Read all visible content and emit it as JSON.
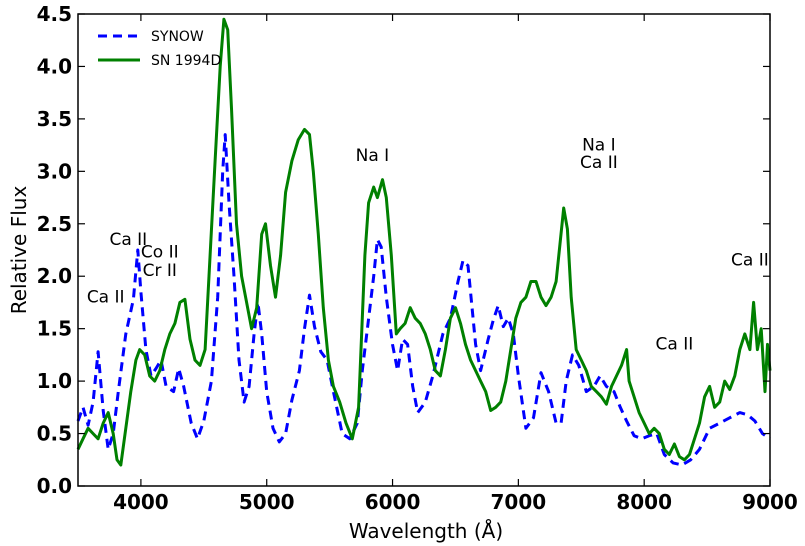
{
  "chart_data": {
    "type": "line",
    "xlabel": "Wavelength (Å)",
    "ylabel": "Relative Flux",
    "xlim": [
      3500,
      9000
    ],
    "ylim": [
      0.0,
      4.5
    ],
    "xticks": [
      "4000",
      "5000",
      "6000",
      "7000",
      "8000",
      "9000"
    ],
    "yticks": [
      "0.0",
      "0.5",
      "1.0",
      "1.5",
      "2.0",
      "2.5",
      "3.0",
      "3.5",
      "4.0",
      "4.5"
    ],
    "grid": false,
    "legend_position": "top-left",
    "series": [
      {
        "name": "SYNOW",
        "color": "#0000ff",
        "style": "dashed",
        "points": [
          [
            3500,
            0.62
          ],
          [
            3540,
            0.75
          ],
          [
            3580,
            0.58
          ],
          [
            3620,
            0.8
          ],
          [
            3660,
            1.28
          ],
          [
            3700,
            0.72
          ],
          [
            3740,
            0.35
          ],
          [
            3780,
            0.5
          ],
          [
            3820,
            0.9
          ],
          [
            3880,
            1.45
          ],
          [
            3940,
            1.78
          ],
          [
            3975,
            2.25
          ],
          [
            4000,
            1.85
          ],
          [
            4040,
            1.3
          ],
          [
            4080,
            1.05
          ],
          [
            4120,
            1.12
          ],
          [
            4160,
            1.2
          ],
          [
            4200,
            0.95
          ],
          [
            4260,
            0.9
          ],
          [
            4300,
            1.12
          ],
          [
            4340,
            0.95
          ],
          [
            4400,
            0.6
          ],
          [
            4450,
            0.45
          ],
          [
            4500,
            0.62
          ],
          [
            4560,
            1.0
          ],
          [
            4610,
            1.8
          ],
          [
            4650,
            3.0
          ],
          [
            4670,
            3.35
          ],
          [
            4700,
            2.7
          ],
          [
            4740,
            2.0
          ],
          [
            4780,
            1.2
          ],
          [
            4820,
            0.8
          ],
          [
            4860,
            0.95
          ],
          [
            4900,
            1.45
          ],
          [
            4930,
            1.75
          ],
          [
            4960,
            1.45
          ],
          [
            5000,
            0.9
          ],
          [
            5050,
            0.55
          ],
          [
            5100,
            0.42
          ],
          [
            5150,
            0.5
          ],
          [
            5200,
            0.82
          ],
          [
            5260,
            1.1
          ],
          [
            5300,
            1.5
          ],
          [
            5340,
            1.82
          ],
          [
            5380,
            1.52
          ],
          [
            5430,
            1.28
          ],
          [
            5480,
            1.2
          ],
          [
            5530,
            0.9
          ],
          [
            5600,
            0.5
          ],
          [
            5660,
            0.45
          ],
          [
            5720,
            0.6
          ],
          [
            5760,
            1.1
          ],
          [
            5800,
            1.5
          ],
          [
            5850,
            2.0
          ],
          [
            5880,
            2.35
          ],
          [
            5910,
            2.28
          ],
          [
            5950,
            1.8
          ],
          [
            6000,
            1.35
          ],
          [
            6040,
            1.1
          ],
          [
            6080,
            1.4
          ],
          [
            6120,
            1.35
          ],
          [
            6160,
            0.95
          ],
          [
            6200,
            0.7
          ],
          [
            6260,
            0.8
          ],
          [
            6320,
            1.05
          ],
          [
            6400,
            1.45
          ],
          [
            6460,
            1.6
          ],
          [
            6520,
            1.95
          ],
          [
            6560,
            2.15
          ],
          [
            6600,
            2.1
          ],
          [
            6660,
            1.35
          ],
          [
            6700,
            1.1
          ],
          [
            6760,
            1.4
          ],
          [
            6800,
            1.58
          ],
          [
            6840,
            1.72
          ],
          [
            6880,
            1.52
          ],
          [
            6920,
            1.6
          ],
          [
            6960,
            1.45
          ],
          [
            7000,
            1.05
          ],
          [
            7060,
            0.55
          ],
          [
            7120,
            0.65
          ],
          [
            7180,
            1.08
          ],
          [
            7240,
            0.9
          ],
          [
            7300,
            0.6
          ],
          [
            7340,
            0.6
          ],
          [
            7380,
            1.0
          ],
          [
            7430,
            1.25
          ],
          [
            7480,
            1.15
          ],
          [
            7540,
            0.9
          ],
          [
            7600,
            0.95
          ],
          [
            7650,
            1.05
          ],
          [
            7700,
            0.95
          ],
          [
            7760,
            0.9
          ],
          [
            7810,
            0.75
          ],
          [
            7860,
            0.62
          ],
          [
            7920,
            0.48
          ],
          [
            7980,
            0.45
          ],
          [
            8040,
            0.48
          ],
          [
            8100,
            0.5
          ],
          [
            8160,
            0.3
          ],
          [
            8230,
            0.22
          ],
          [
            8300,
            0.2
          ],
          [
            8370,
            0.25
          ],
          [
            8440,
            0.35
          ],
          [
            8520,
            0.55
          ],
          [
            8600,
            0.6
          ],
          [
            8680,
            0.65
          ],
          [
            8760,
            0.7
          ],
          [
            8820,
            0.68
          ],
          [
            8880,
            0.62
          ],
          [
            8940,
            0.5
          ],
          [
            9000,
            0.45
          ]
        ]
      },
      {
        "name": "SN 1994D",
        "color": "#008000",
        "style": "solid",
        "points": [
          [
            3500,
            0.35
          ],
          [
            3540,
            0.45
          ],
          [
            3580,
            0.55
          ],
          [
            3620,
            0.5
          ],
          [
            3660,
            0.45
          ],
          [
            3700,
            0.6
          ],
          [
            3740,
            0.7
          ],
          [
            3780,
            0.5
          ],
          [
            3810,
            0.25
          ],
          [
            3840,
            0.2
          ],
          [
            3880,
            0.55
          ],
          [
            3920,
            0.9
          ],
          [
            3960,
            1.2
          ],
          [
            3990,
            1.3
          ],
          [
            4030,
            1.25
          ],
          [
            4070,
            1.05
          ],
          [
            4110,
            1.0
          ],
          [
            4150,
            1.1
          ],
          [
            4190,
            1.3
          ],
          [
            4230,
            1.45
          ],
          [
            4270,
            1.55
          ],
          [
            4310,
            1.75
          ],
          [
            4350,
            1.78
          ],
          [
            4390,
            1.4
          ],
          [
            4430,
            1.2
          ],
          [
            4470,
            1.15
          ],
          [
            4510,
            1.3
          ],
          [
            4550,
            2.2
          ],
          [
            4590,
            3.1
          ],
          [
            4630,
            4.0
          ],
          [
            4660,
            4.45
          ],
          [
            4690,
            4.35
          ],
          [
            4720,
            3.6
          ],
          [
            4760,
            2.5
          ],
          [
            4800,
            2.0
          ],
          [
            4840,
            1.75
          ],
          [
            4880,
            1.5
          ],
          [
            4920,
            1.7
          ],
          [
            4960,
            2.4
          ],
          [
            4990,
            2.5
          ],
          [
            5030,
            2.1
          ],
          [
            5070,
            1.8
          ],
          [
            5110,
            2.2
          ],
          [
            5150,
            2.8
          ],
          [
            5200,
            3.1
          ],
          [
            5250,
            3.3
          ],
          [
            5300,
            3.4
          ],
          [
            5340,
            3.35
          ],
          [
            5370,
            3.0
          ],
          [
            5410,
            2.4
          ],
          [
            5450,
            1.7
          ],
          [
            5490,
            1.2
          ],
          [
            5530,
            0.95
          ],
          [
            5580,
            0.8
          ],
          [
            5630,
            0.6
          ],
          [
            5680,
            0.45
          ],
          [
            5730,
            0.75
          ],
          [
            5780,
            2.2
          ],
          [
            5810,
            2.7
          ],
          [
            5850,
            2.85
          ],
          [
            5880,
            2.75
          ],
          [
            5920,
            2.92
          ],
          [
            5950,
            2.75
          ],
          [
            5990,
            2.2
          ],
          [
            6030,
            1.45
          ],
          [
            6060,
            1.5
          ],
          [
            6100,
            1.55
          ],
          [
            6140,
            1.7
          ],
          [
            6180,
            1.6
          ],
          [
            6220,
            1.55
          ],
          [
            6260,
            1.45
          ],
          [
            6300,
            1.3
          ],
          [
            6340,
            1.1
          ],
          [
            6380,
            1.05
          ],
          [
            6420,
            1.3
          ],
          [
            6460,
            1.6
          ],
          [
            6500,
            1.7
          ],
          [
            6540,
            1.55
          ],
          [
            6580,
            1.35
          ],
          [
            6620,
            1.2
          ],
          [
            6660,
            1.1
          ],
          [
            6700,
            1.0
          ],
          [
            6740,
            0.9
          ],
          [
            6780,
            0.72
          ],
          [
            6820,
            0.75
          ],
          [
            6860,
            0.8
          ],
          [
            6900,
            1.0
          ],
          [
            6940,
            1.3
          ],
          [
            6980,
            1.6
          ],
          [
            7020,
            1.75
          ],
          [
            7060,
            1.8
          ],
          [
            7100,
            1.95
          ],
          [
            7140,
            1.95
          ],
          [
            7180,
            1.8
          ],
          [
            7220,
            1.72
          ],
          [
            7260,
            1.8
          ],
          [
            7300,
            1.95
          ],
          [
            7330,
            2.3
          ],
          [
            7360,
            2.65
          ],
          [
            7390,
            2.45
          ],
          [
            7420,
            1.8
          ],
          [
            7460,
            1.3
          ],
          [
            7500,
            1.2
          ],
          [
            7540,
            1.1
          ],
          [
            7580,
            0.95
          ],
          [
            7620,
            0.9
          ],
          [
            7660,
            0.85
          ],
          [
            7700,
            0.78
          ],
          [
            7740,
            0.95
          ],
          [
            7780,
            1.05
          ],
          [
            7820,
            1.15
          ],
          [
            7860,
            1.3
          ],
          [
            7880,
            1.0
          ],
          [
            7920,
            0.85
          ],
          [
            7960,
            0.7
          ],
          [
            8000,
            0.6
          ],
          [
            8040,
            0.5
          ],
          [
            8080,
            0.55
          ],
          [
            8120,
            0.5
          ],
          [
            8160,
            0.35
          ],
          [
            8200,
            0.3
          ],
          [
            8240,
            0.4
          ],
          [
            8280,
            0.28
          ],
          [
            8320,
            0.25
          ],
          [
            8360,
            0.3
          ],
          [
            8400,
            0.45
          ],
          [
            8440,
            0.6
          ],
          [
            8480,
            0.85
          ],
          [
            8520,
            0.95
          ],
          [
            8560,
            0.75
          ],
          [
            8600,
            0.8
          ],
          [
            8640,
            1.0
          ],
          [
            8680,
            0.92
          ],
          [
            8720,
            1.05
          ],
          [
            8760,
            1.3
          ],
          [
            8800,
            1.45
          ],
          [
            8840,
            1.3
          ],
          [
            8870,
            1.75
          ],
          [
            8900,
            1.3
          ],
          [
            8930,
            1.5
          ],
          [
            8960,
            0.9
          ],
          [
            8980,
            1.35
          ],
          [
            9000,
            1.1
          ]
        ]
      }
    ],
    "annotations": [
      {
        "text": "Ca II",
        "x": 3720,
        "y": 1.75
      },
      {
        "text": "Ca II",
        "x": 3900,
        "y": 2.3
      },
      {
        "text": "Co II",
        "x": 4150,
        "y": 2.18
      },
      {
        "text": "Cr II",
        "x": 4150,
        "y": 2.0
      },
      {
        "text": "Na I",
        "x": 5840,
        "y": 3.1
      },
      {
        "text": "Na I",
        "x": 7640,
        "y": 3.2
      },
      {
        "text": "Ca II",
        "x": 7640,
        "y": 3.03
      },
      {
        "text": "Ca II",
        "x": 8240,
        "y": 1.3
      },
      {
        "text": "Ca II",
        "x": 8840,
        "y": 2.1
      }
    ]
  }
}
